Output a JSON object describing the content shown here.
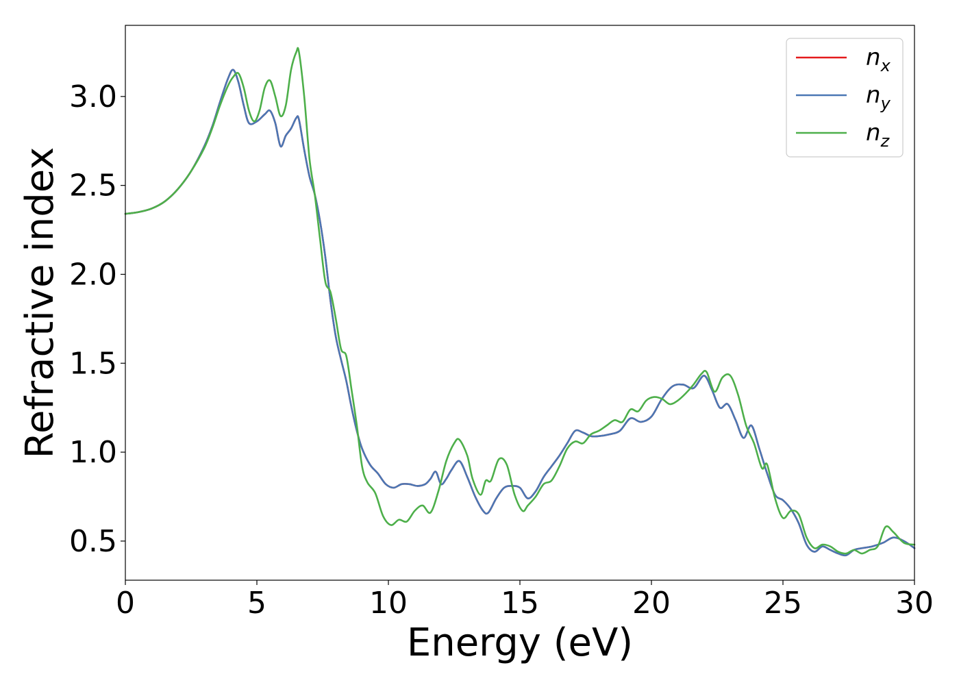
{
  "chart_data": {
    "type": "line",
    "xlabel": "Energy (eV)",
    "ylabel": "Refractive index",
    "xlim": [
      0,
      30
    ],
    "ylim": [
      0.28,
      3.4
    ],
    "xticks": [
      0,
      5,
      10,
      15,
      20,
      25,
      30
    ],
    "xtick_labels": [
      "0",
      "5",
      "10",
      "15",
      "20",
      "25",
      "30"
    ],
    "yticks": [
      0.5,
      1.0,
      1.5,
      2.0,
      2.5,
      3.0
    ],
    "ytick_labels": [
      "0.5",
      "1.0",
      "1.5",
      "2.0",
      "2.5",
      "3.0"
    ],
    "grid": false,
    "legend_position": "top-right",
    "series": [
      {
        "name": "n_x",
        "label_base": "n",
        "label_sub": "x",
        "color": "#e41a1c",
        "x": [
          0,
          0.5,
          1,
          1.5,
          2,
          2.5,
          3,
          3.3,
          3.6,
          3.9,
          4.1,
          4.3,
          4.5,
          4.7,
          5.0,
          5.3,
          5.5,
          5.7,
          5.9,
          6.1,
          6.3,
          6.5,
          6.6,
          6.8,
          7.0,
          7.2,
          7.4,
          7.6,
          7.8,
          8.0,
          8.2,
          8.4,
          8.6,
          8.8,
          9.0,
          9.3,
          9.6,
          9.9,
          10.2,
          10.5,
          10.8,
          11.1,
          11.4,
          11.6,
          11.8,
          12.0,
          12.2,
          12.4,
          12.7,
          13.0,
          13.3,
          13.6,
          13.8,
          14.1,
          14.4,
          14.7,
          15.0,
          15.3,
          15.6,
          15.9,
          16.2,
          16.5,
          16.8,
          17.1,
          17.4,
          17.7,
          18.0,
          18.4,
          18.8,
          19.2,
          19.6,
          20.0,
          20.4,
          20.8,
          21.2,
          21.6,
          22.0,
          22.3,
          22.6,
          22.9,
          23.2,
          23.5,
          23.8,
          24.1,
          24.4,
          24.7,
          25.0,
          25.3,
          25.6,
          25.9,
          26.2,
          26.5,
          26.8,
          27.1,
          27.4,
          27.7,
          28.0,
          28.4,
          28.8,
          29.2,
          29.6,
          30.0
        ],
        "y": [
          2.34,
          2.35,
          2.37,
          2.41,
          2.48,
          2.58,
          2.72,
          2.83,
          2.97,
          3.1,
          3.15,
          3.08,
          2.95,
          2.85,
          2.86,
          2.9,
          2.92,
          2.85,
          2.72,
          2.78,
          2.82,
          2.88,
          2.87,
          2.7,
          2.55,
          2.45,
          2.3,
          2.1,
          1.85,
          1.65,
          1.52,
          1.4,
          1.25,
          1.12,
          1.02,
          0.93,
          0.88,
          0.82,
          0.8,
          0.82,
          0.82,
          0.81,
          0.82,
          0.85,
          0.89,
          0.82,
          0.85,
          0.9,
          0.95,
          0.86,
          0.75,
          0.67,
          0.66,
          0.74,
          0.8,
          0.81,
          0.8,
          0.74,
          0.78,
          0.86,
          0.92,
          0.98,
          1.05,
          1.12,
          1.11,
          1.09,
          1.09,
          1.1,
          1.12,
          1.19,
          1.17,
          1.2,
          1.3,
          1.37,
          1.38,
          1.36,
          1.43,
          1.35,
          1.25,
          1.27,
          1.18,
          1.08,
          1.15,
          1.02,
          0.88,
          0.76,
          0.73,
          0.68,
          0.6,
          0.48,
          0.44,
          0.47,
          0.45,
          0.43,
          0.42,
          0.45,
          0.46,
          0.47,
          0.49,
          0.52,
          0.5,
          0.46
        ]
      },
      {
        "name": "n_y",
        "label_base": "n",
        "label_sub": "y",
        "color": "#4a77b4",
        "x": [
          0,
          0.5,
          1,
          1.5,
          2,
          2.5,
          3,
          3.3,
          3.6,
          3.9,
          4.1,
          4.3,
          4.5,
          4.7,
          5.0,
          5.3,
          5.5,
          5.7,
          5.9,
          6.1,
          6.3,
          6.5,
          6.6,
          6.8,
          7.0,
          7.2,
          7.4,
          7.6,
          7.8,
          8.0,
          8.2,
          8.4,
          8.6,
          8.8,
          9.0,
          9.3,
          9.6,
          9.9,
          10.2,
          10.5,
          10.8,
          11.1,
          11.4,
          11.6,
          11.8,
          12.0,
          12.2,
          12.4,
          12.7,
          13.0,
          13.3,
          13.6,
          13.8,
          14.1,
          14.4,
          14.7,
          15.0,
          15.3,
          15.6,
          15.9,
          16.2,
          16.5,
          16.8,
          17.1,
          17.4,
          17.7,
          18.0,
          18.4,
          18.8,
          19.2,
          19.6,
          20.0,
          20.4,
          20.8,
          21.2,
          21.6,
          22.0,
          22.3,
          22.6,
          22.9,
          23.2,
          23.5,
          23.8,
          24.1,
          24.4,
          24.7,
          25.0,
          25.3,
          25.6,
          25.9,
          26.2,
          26.5,
          26.8,
          27.1,
          27.4,
          27.7,
          28.0,
          28.4,
          28.8,
          29.2,
          29.6,
          30.0
        ],
        "y": [
          2.34,
          2.35,
          2.37,
          2.41,
          2.48,
          2.58,
          2.72,
          2.83,
          2.97,
          3.1,
          3.15,
          3.08,
          2.95,
          2.85,
          2.86,
          2.9,
          2.92,
          2.85,
          2.72,
          2.78,
          2.82,
          2.88,
          2.87,
          2.7,
          2.55,
          2.45,
          2.3,
          2.1,
          1.85,
          1.65,
          1.52,
          1.4,
          1.25,
          1.12,
          1.02,
          0.93,
          0.88,
          0.82,
          0.8,
          0.82,
          0.82,
          0.81,
          0.82,
          0.85,
          0.89,
          0.82,
          0.85,
          0.9,
          0.95,
          0.86,
          0.75,
          0.67,
          0.66,
          0.74,
          0.8,
          0.81,
          0.8,
          0.74,
          0.78,
          0.86,
          0.92,
          0.98,
          1.05,
          1.12,
          1.11,
          1.09,
          1.09,
          1.1,
          1.12,
          1.19,
          1.17,
          1.2,
          1.3,
          1.37,
          1.38,
          1.36,
          1.43,
          1.35,
          1.25,
          1.27,
          1.18,
          1.08,
          1.15,
          1.02,
          0.88,
          0.76,
          0.73,
          0.68,
          0.6,
          0.48,
          0.44,
          0.47,
          0.45,
          0.43,
          0.42,
          0.45,
          0.46,
          0.47,
          0.49,
          0.52,
          0.5,
          0.46
        ]
      },
      {
        "name": "n_z",
        "label_base": "n",
        "label_sub": "z",
        "color": "#4daf4a",
        "x": [
          0,
          0.5,
          1,
          1.5,
          2,
          2.5,
          3,
          3.3,
          3.6,
          3.9,
          4.1,
          4.3,
          4.5,
          4.7,
          4.9,
          5.1,
          5.3,
          5.5,
          5.7,
          5.9,
          6.1,
          6.3,
          6.5,
          6.6,
          6.8,
          7.0,
          7.2,
          7.4,
          7.6,
          7.8,
          8.0,
          8.2,
          8.4,
          8.6,
          8.8,
          9.0,
          9.2,
          9.5,
          9.8,
          10.1,
          10.4,
          10.7,
          11.0,
          11.3,
          11.6,
          11.9,
          12.2,
          12.5,
          12.7,
          13.0,
          13.2,
          13.5,
          13.7,
          13.9,
          14.2,
          14.5,
          14.8,
          15.1,
          15.3,
          15.6,
          15.9,
          16.2,
          16.5,
          16.8,
          17.1,
          17.4,
          17.7,
          18.0,
          18.3,
          18.6,
          18.9,
          19.2,
          19.5,
          19.8,
          20.1,
          20.4,
          20.7,
          21.0,
          21.3,
          21.6,
          21.9,
          22.1,
          22.4,
          22.7,
          23.0,
          23.3,
          23.6,
          23.9,
          24.2,
          24.4,
          24.7,
          25.0,
          25.3,
          25.6,
          25.9,
          26.2,
          26.5,
          26.8,
          27.1,
          27.4,
          27.7,
          28.0,
          28.3,
          28.6,
          28.9,
          29.2,
          29.6,
          30.0
        ],
        "y": [
          2.34,
          2.35,
          2.37,
          2.41,
          2.48,
          2.58,
          2.71,
          2.82,
          2.95,
          3.06,
          3.11,
          3.13,
          3.05,
          2.92,
          2.86,
          2.92,
          3.05,
          3.09,
          3.0,
          2.89,
          2.95,
          3.15,
          3.25,
          3.25,
          3.0,
          2.65,
          2.45,
          2.2,
          1.96,
          1.9,
          1.75,
          1.58,
          1.54,
          1.35,
          1.15,
          0.92,
          0.83,
          0.77,
          0.64,
          0.59,
          0.62,
          0.61,
          0.67,
          0.7,
          0.66,
          0.78,
          0.95,
          1.05,
          1.07,
          0.98,
          0.85,
          0.76,
          0.84,
          0.84,
          0.96,
          0.93,
          0.76,
          0.67,
          0.7,
          0.75,
          0.82,
          0.84,
          0.92,
          1.02,
          1.06,
          1.05,
          1.1,
          1.12,
          1.15,
          1.18,
          1.17,
          1.24,
          1.23,
          1.29,
          1.31,
          1.3,
          1.27,
          1.29,
          1.33,
          1.38,
          1.44,
          1.45,
          1.34,
          1.42,
          1.43,
          1.32,
          1.15,
          1.05,
          0.91,
          0.93,
          0.74,
          0.63,
          0.67,
          0.65,
          0.52,
          0.46,
          0.48,
          0.47,
          0.44,
          0.43,
          0.45,
          0.43,
          0.45,
          0.47,
          0.58,
          0.55,
          0.49,
          0.48
        ]
      }
    ]
  }
}
